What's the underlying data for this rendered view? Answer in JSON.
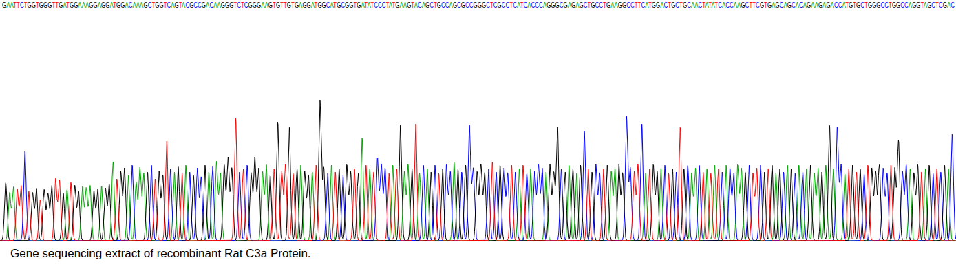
{
  "chart_data": {
    "type": "chromatogram",
    "sequence": "GAATTCTGGTGGGTTGATGGAAAGGAGGATGGACAAAGCTGGTCAGTACGCCGACAAGGGTCTCGGGAAGTGTTGTGAGGATGGCATGCGGTGATATCCCTATGAAGTACAGCTGCCAGCGCCGGGCTCGCCTCATCACCCAGGGCGAGAGCTGCCTGAAGGCCTTCATGGACTGCTGCAACTATATCACCAAGCTTCGTGAGCAGCACAGAAGAGACCATGTGCTGGGCCTGGCCAGGTAGCTCGAC",
    "caption": "Gene sequencing extract of recombinant Rat C3a Protein.",
    "series": [
      {
        "name": "A",
        "color": "#00a800"
      },
      {
        "name": "C",
        "color": "#0000ff"
      },
      {
        "name": "G",
        "color": "#000000"
      },
      {
        "name": "T",
        "color": "#ff0000"
      }
    ],
    "values": [
      85,
      70,
      78,
      75,
      80,
      130,
      72,
      70,
      76,
      60,
      74,
      68,
      80,
      90,
      88,
      70,
      75,
      85,
      80,
      72,
      78,
      76,
      80,
      72,
      75,
      80,
      76,
      82,
      115,
      90,
      100,
      105,
      95,
      110,
      85,
      105,
      98,
      100,
      110,
      90,
      100,
      95,
      145,
      105,
      100,
      108,
      98,
      110,
      100,
      95,
      105,
      92,
      110,
      100,
      108,
      115,
      98,
      110,
      120,
      105,
      178,
      100,
      105,
      110,
      98,
      120,
      105,
      100,
      110,
      95,
      105,
      172,
      100,
      110,
      165,
      98,
      105,
      110,
      100,
      95,
      100,
      110,
      203,
      105,
      98,
      110,
      100,
      105,
      95,
      110,
      100,
      105,
      98,
      150,
      110,
      105,
      100,
      120,
      110,
      105,
      98,
      110,
      105,
      168,
      100,
      110,
      105,
      170,
      98,
      110,
      105,
      100,
      110,
      98,
      105,
      110,
      100,
      115,
      105,
      100,
      110,
      168,
      105,
      100,
      110,
      98,
      105,
      115,
      100,
      110,
      105,
      98,
      110,
      100,
      105,
      110,
      98,
      105,
      100,
      110,
      105,
      100,
      110,
      98,
      165,
      105,
      100,
      110,
      105,
      98,
      110,
      160,
      105,
      100,
      110,
      98,
      105,
      110,
      100,
      105,
      110,
      98,
      180,
      105,
      100,
      110,
      170,
      98,
      105,
      110,
      100,
      105,
      110,
      98,
      105,
      100,
      165,
      105,
      110,
      98,
      105,
      110,
      100,
      105,
      98,
      110,
      105,
      100,
      110,
      105,
      98,
      110,
      105,
      100,
      110,
      98,
      105,
      110,
      100,
      105,
      110,
      98,
      105,
      100,
      110,
      105,
      98,
      110,
      100,
      105,
      110,
      98,
      105,
      100,
      110,
      168,
      105,
      165,
      110,
      98,
      105,
      110,
      100,
      105,
      98,
      110,
      105,
      100,
      110,
      105,
      98,
      110,
      105,
      145,
      100,
      110,
      105,
      98,
      110,
      100,
      105,
      110,
      98,
      105,
      100,
      110,
      105,
      155
    ],
    "xlim": [
      -1.5,
      248
    ],
    "ylim": [
      0,
      210
    ],
    "tick_labels": false,
    "grid": false
  }
}
